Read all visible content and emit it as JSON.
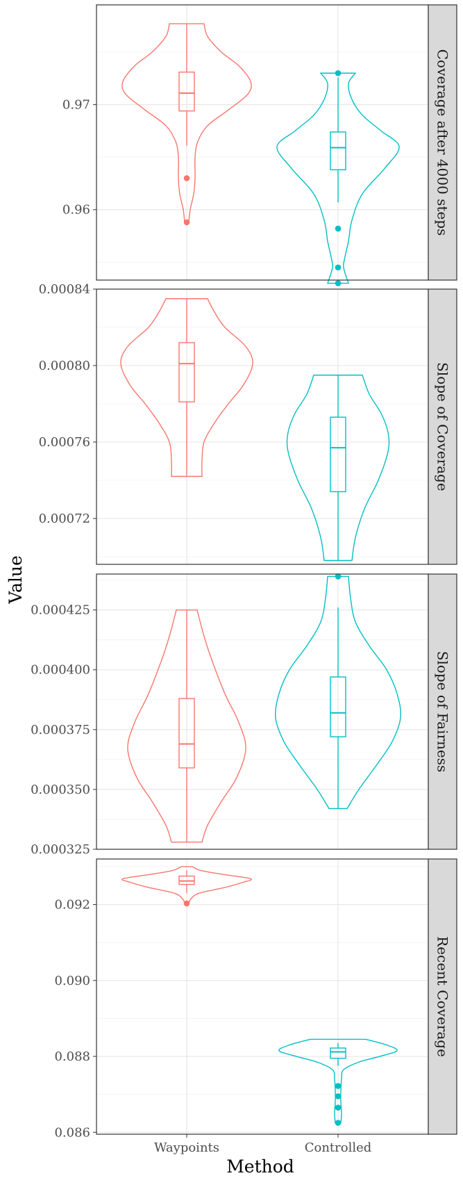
{
  "chart_data": {
    "type": "violin",
    "xlabel": "Method",
    "ylabel": "Value",
    "categories": [
      "Waypoints",
      "Controlled"
    ],
    "colors": {
      "Waypoints": "#F8766D",
      "Controlled": "#00BFC4"
    },
    "grid": true,
    "legend": "none",
    "panels": [
      {
        "strip": "Coverage after 4000 steps",
        "ylim": [
          0.9533,
          0.9795
        ],
        "ticks": [
          {
            "v": 0.96,
            "label": "0.96"
          },
          {
            "v": 0.97,
            "label": "0.97"
          }
        ],
        "groups": [
          {
            "name": "Waypoints",
            "q1": 0.9694,
            "median": 0.9711,
            "q3": 0.9731,
            "whisker_low": 0.9661,
            "whisker_high": 0.9777,
            "outliers": [
              0.963,
              0.9588
            ],
            "profile": [
              [
                0.9588,
                0.03
              ],
              [
                0.96,
                0.05
              ],
              [
                0.9615,
                0.1
              ],
              [
                0.963,
                0.12
              ],
              [
                0.965,
                0.12
              ],
              [
                0.9665,
                0.16
              ],
              [
                0.968,
                0.3
              ],
              [
                0.9695,
                0.6
              ],
              [
                0.971,
                0.88
              ],
              [
                0.9722,
                0.92
              ],
              [
                0.9737,
                0.75
              ],
              [
                0.975,
                0.5
              ],
              [
                0.9765,
                0.3
              ],
              [
                0.9777,
                0.25
              ]
            ]
          },
          {
            "name": "Controlled",
            "q1": 0.9638,
            "median": 0.9659,
            "q3": 0.9674,
            "whisker_low": 0.9607,
            "whisker_high": 0.9726,
            "outliers": [
              0.973,
              0.9582,
              0.9545,
              0.953
            ],
            "profile": [
              [
                0.953,
                0.15
              ],
              [
                0.9545,
                0.08
              ],
              [
                0.9555,
                0.1
              ],
              [
                0.957,
                0.15
              ],
              [
                0.959,
                0.2
              ],
              [
                0.9615,
                0.35
              ],
              [
                0.964,
                0.68
              ],
              [
                0.966,
                0.88
              ],
              [
                0.9675,
                0.62
              ],
              [
                0.969,
                0.35
              ],
              [
                0.9705,
                0.2
              ],
              [
                0.972,
                0.15
              ],
              [
                0.973,
                0.25
              ]
            ]
          }
        ]
      },
      {
        "strip": "Slope of Coverage",
        "ylim": [
          0.000696,
          0.00084
        ],
        "ticks": [
          {
            "v": 0.00072,
            "label": "0.00072"
          },
          {
            "v": 0.00076,
            "label": "0.00076"
          },
          {
            "v": 0.0008,
            "label": "0.00080"
          },
          {
            "v": 0.00084,
            "label": "0.00084"
          }
        ],
        "groups": [
          {
            "name": "Waypoints",
            "q1": 0.000781,
            "median": 0.000801,
            "q3": 0.000812,
            "whisker_low": 0.000742,
            "whisker_high": 0.000835,
            "outliers": [],
            "profile": [
              [
                0.000742,
                0.22
              ],
              [
                0.00075,
                0.22
              ],
              [
                0.00076,
                0.25
              ],
              [
                0.00077,
                0.4
              ],
              [
                0.00078,
                0.6
              ],
              [
                0.00079,
                0.82
              ],
              [
                0.000801,
                0.95
              ],
              [
                0.00081,
                0.85
              ],
              [
                0.00082,
                0.55
              ],
              [
                0.000828,
                0.4
              ],
              [
                0.000835,
                0.3
              ]
            ]
          },
          {
            "name": "Controlled",
            "q1": 0.000734,
            "median": 0.000757,
            "q3": 0.000773,
            "whisker_low": 0.000698,
            "whisker_high": 0.000795,
            "outliers": [],
            "profile": [
              [
                0.000698,
                0.2
              ],
              [
                0.00071,
                0.25
              ],
              [
                0.000725,
                0.38
              ],
              [
                0.00074,
                0.58
              ],
              [
                0.000755,
                0.72
              ],
              [
                0.000765,
                0.72
              ],
              [
                0.000775,
                0.62
              ],
              [
                0.000785,
                0.45
              ],
              [
                0.000795,
                0.35
              ]
            ]
          }
        ]
      },
      {
        "strip": "Slope of Fairness",
        "ylim": [
          0.000325,
          0.00044
        ],
        "ticks": [
          {
            "v": 0.000325,
            "label": "0.000325"
          },
          {
            "v": 0.00035,
            "label": "0.000350"
          },
          {
            "v": 0.000375,
            "label": "0.000375"
          },
          {
            "v": 0.0004,
            "label": "0.000400"
          },
          {
            "v": 0.000425,
            "label": "0.000425"
          }
        ],
        "groups": [
          {
            "name": "Waypoints",
            "q1": 0.000359,
            "median": 0.000369,
            "q3": 0.000388,
            "whisker_low": 0.000328,
            "whisker_high": 0.000425,
            "outliers": [],
            "profile": [
              [
                0.000328,
                0.22
              ],
              [
                0.000335,
                0.3
              ],
              [
                0.000345,
                0.5
              ],
              [
                0.000355,
                0.72
              ],
              [
                0.000367,
                0.85
              ],
              [
                0.000378,
                0.75
              ],
              [
                0.00039,
                0.55
              ],
              [
                0.000405,
                0.35
              ],
              [
                0.000415,
                0.24
              ],
              [
                0.000425,
                0.15
              ]
            ]
          },
          {
            "name": "Controlled",
            "q1": 0.000372,
            "median": 0.000382,
            "q3": 0.000397,
            "whisker_low": 0.000342,
            "whisker_high": 0.000426,
            "outliers": [
              0.000439
            ],
            "profile": [
              [
                0.000342,
                0.13
              ],
              [
                0.00035,
                0.3
              ],
              [
                0.00036,
                0.55
              ],
              [
                0.00037,
                0.78
              ],
              [
                0.00038,
                0.9
              ],
              [
                0.00039,
                0.85
              ],
              [
                0.0004,
                0.7
              ],
              [
                0.00041,
                0.45
              ],
              [
                0.00042,
                0.25
              ],
              [
                0.00043,
                0.18
              ],
              [
                0.000439,
                0.15
              ]
            ]
          }
        ]
      },
      {
        "strip": "Recent Coverage",
        "ylim": [
          0.08595,
          0.0932
        ],
        "ticks": [
          {
            "v": 0.086,
            "label": "0.086"
          },
          {
            "v": 0.088,
            "label": "0.088"
          },
          {
            "v": 0.09,
            "label": "0.090"
          },
          {
            "v": 0.092,
            "label": "0.092"
          }
        ],
        "groups": [
          {
            "name": "Waypoints",
            "q1": 0.09253,
            "median": 0.09262,
            "q3": 0.09275,
            "whisker_low": 0.0923,
            "whisker_high": 0.0929,
            "outliers": [
              0.09203
            ],
            "profile": [
              [
                0.09203,
                0.03
              ],
              [
                0.09215,
                0.06
              ],
              [
                0.0923,
                0.18
              ],
              [
                0.09245,
                0.55
              ],
              [
                0.09258,
                0.8
              ],
              [
                0.09268,
                0.92
              ],
              [
                0.0928,
                0.5
              ],
              [
                0.0929,
                0.2
              ],
              [
                0.093,
                0.08
              ]
            ]
          },
          {
            "name": "Controlled",
            "q1": 0.08795,
            "median": 0.08812,
            "q3": 0.08822,
            "whisker_low": 0.08775,
            "whisker_high": 0.08835,
            "outliers": [
              0.08722,
              0.08695,
              0.08665,
              0.08625
            ],
            "profile": [
              [
                0.08625,
                0.04
              ],
              [
                0.0865,
                0.05
              ],
              [
                0.0868,
                0.04
              ],
              [
                0.0871,
                0.04
              ],
              [
                0.0874,
                0.05
              ],
              [
                0.08765,
                0.08
              ],
              [
                0.08785,
                0.3
              ],
              [
                0.088,
                0.6
              ],
              [
                0.08815,
                0.85
              ],
              [
                0.0883,
                0.7
              ],
              [
                0.08845,
                0.4
              ]
            ]
          }
        ]
      }
    ]
  }
}
